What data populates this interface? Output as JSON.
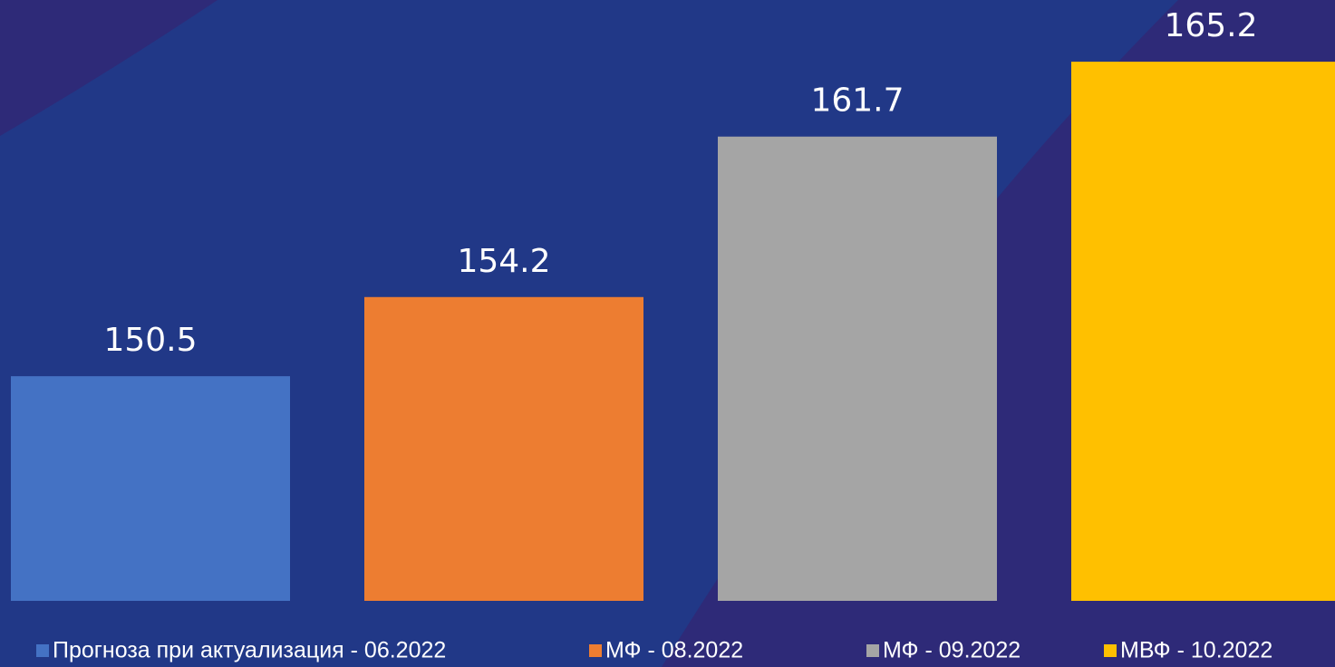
{
  "chart_data": {
    "type": "bar",
    "series": [
      {
        "name": "Прогноза при актуализация - 06.2022",
        "color": "#4472c4",
        "values": [
          150.5
        ]
      },
      {
        "name": "МФ - 08.2022",
        "color": "#ed7d31",
        "values": [
          154.2
        ]
      },
      {
        "name": "МФ - 09.2022",
        "color": "#a5a5a5",
        "values": [
          161.7
        ]
      },
      {
        "name": "МВФ - 10.2022",
        "color": "#ffc000",
        "values": [
          165.2
        ]
      }
    ],
    "ylim": [
      140,
      168
    ]
  }
}
